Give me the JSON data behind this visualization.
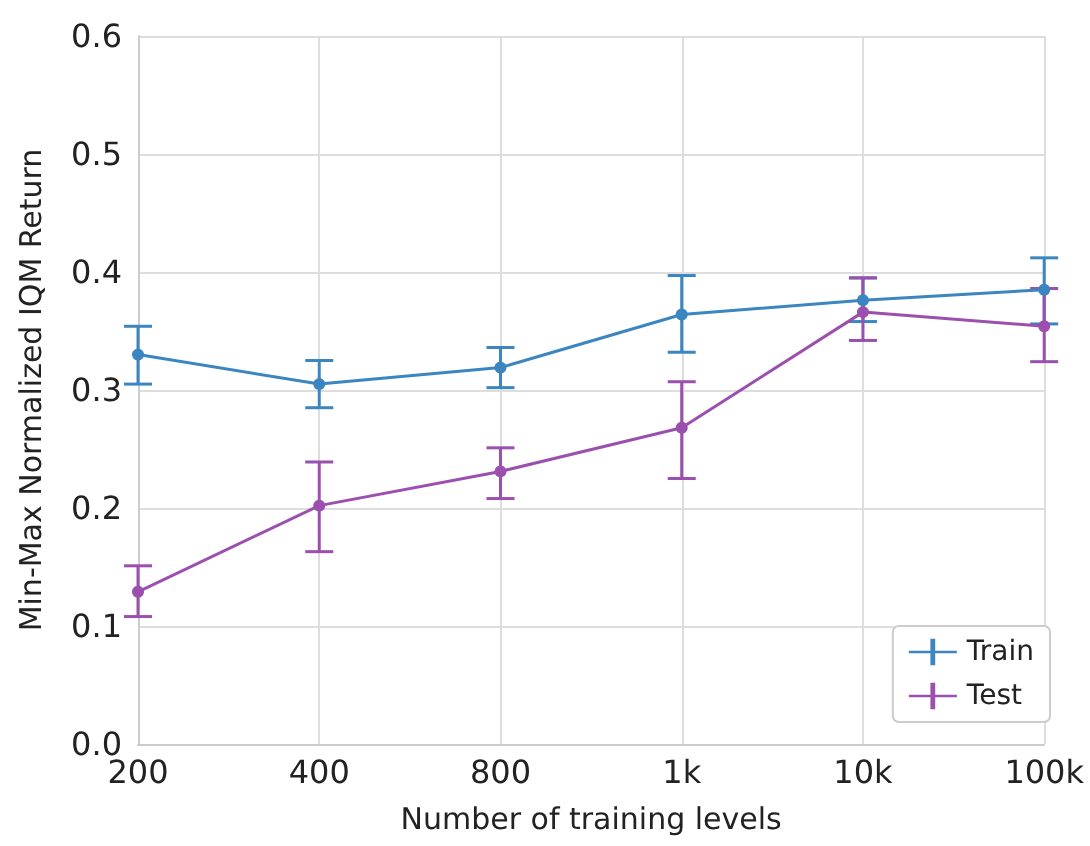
{
  "chart_data": {
    "type": "line",
    "xlabel": "Number of training levels",
    "ylabel": "Min-Max Normalized IQM Return",
    "categories": [
      "200",
      "400",
      "800",
      "1k",
      "10k",
      "100k"
    ],
    "series": [
      {
        "name": "Train",
        "color": "#3b86c0",
        "values": [
          0.33,
          0.305,
          0.319,
          0.364,
          0.376,
          0.385
        ],
        "errors": [
          [
            0.305,
            0.354
          ],
          [
            0.285,
            0.325
          ],
          [
            0.302,
            0.336
          ],
          [
            0.332,
            0.397
          ],
          [
            0.358,
            0.395
          ],
          [
            0.356,
            0.412
          ]
        ]
      },
      {
        "name": "Test",
        "color": "#9b4fae",
        "values": [
          0.129,
          0.202,
          0.231,
          0.268,
          0.366,
          0.354
        ],
        "errors": [
          [
            0.108,
            0.151
          ],
          [
            0.163,
            0.239
          ],
          [
            0.208,
            0.251
          ],
          [
            0.225,
            0.307
          ],
          [
            0.342,
            0.395
          ],
          [
            0.324,
            0.386
          ]
        ]
      }
    ],
    "ylim": [
      0,
      0.6
    ],
    "yticks": [
      {
        "value": 0,
        "label": "0.0"
      },
      {
        "value": 0.1,
        "label": "0.1"
      },
      {
        "value": 0.2,
        "label": "0.2"
      },
      {
        "value": 0.3,
        "label": "0.3"
      },
      {
        "value": 0.4,
        "label": "0.4"
      },
      {
        "value": 0.5,
        "label": "0.5"
      },
      {
        "value": 0.6,
        "label": "0.6"
      }
    ],
    "grid": true,
    "legend": "bottom right",
    "marker": "circle",
    "line_style": "solid"
  }
}
